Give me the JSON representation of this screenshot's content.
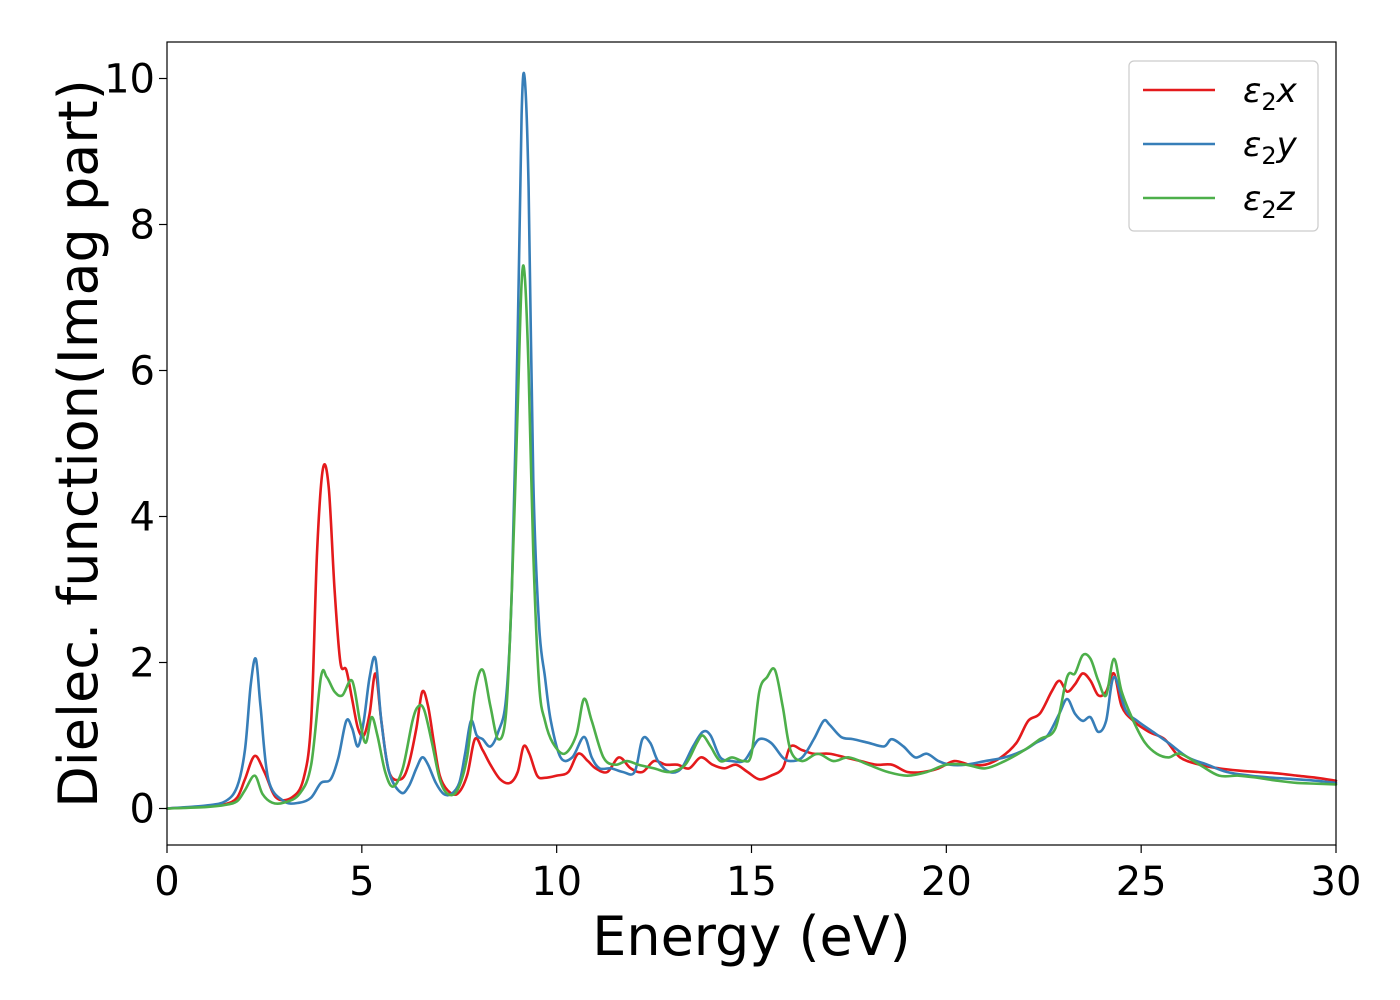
{
  "chart_data": {
    "type": "line",
    "title": "",
    "xlabel": "Energy (eV)",
    "ylabel": "Dielec. function(Imag part)",
    "xlim": [
      0,
      30
    ],
    "ylim": [
      -0.5,
      10.5
    ],
    "xticks": [
      0,
      5,
      10,
      15,
      20,
      25,
      30
    ],
    "xtick_labels": [
      "0",
      "5",
      "10",
      "15",
      "20",
      "25",
      "30"
    ],
    "yticks": [
      0,
      2,
      4,
      6,
      8,
      10
    ],
    "ytick_labels": [
      "0",
      "2",
      "4",
      "6",
      "8",
      "10"
    ],
    "grid": false,
    "legend_position": "top-right",
    "series": [
      {
        "name": "ε2x",
        "legend_base": "ε",
        "legend_sub": "2",
        "legend_var": "x",
        "color": "#e41a1c",
        "x": [
          0,
          1,
          1.5,
          1.8,
          2.0,
          2.25,
          2.5,
          2.8,
          3.2,
          3.5,
          3.7,
          3.85,
          4.0,
          4.15,
          4.3,
          4.45,
          4.6,
          4.75,
          4.9,
          5.05,
          5.2,
          5.35,
          5.5,
          5.7,
          6.0,
          6.2,
          6.4,
          6.55,
          6.7,
          6.85,
          7.0,
          7.2,
          7.45,
          7.7,
          7.9,
          8.1,
          8.3,
          8.55,
          8.8,
          9.0,
          9.15,
          9.3,
          9.5,
          9.7,
          10.0,
          10.3,
          10.55,
          10.8,
          11.0,
          11.3,
          11.6,
          11.9,
          12.2,
          12.5,
          12.8,
          13.1,
          13.4,
          13.7,
          14.0,
          14.3,
          14.6,
          14.9,
          15.2,
          15.5,
          15.8,
          16.0,
          16.3,
          16.6,
          17.0,
          17.4,
          17.8,
          18.2,
          18.6,
          19.0,
          19.4,
          19.8,
          20.2,
          20.6,
          21.0,
          21.4,
          21.8,
          22.1,
          22.4,
          22.7,
          22.9,
          23.1,
          23.3,
          23.5,
          23.7,
          23.9,
          24.1,
          24.3,
          24.5,
          24.8,
          25.2,
          25.6,
          26.0,
          26.5,
          27.0,
          27.5,
          28.0,
          28.5,
          29.0,
          29.5,
          30.0
        ],
        "y": [
          0,
          0.03,
          0.06,
          0.15,
          0.4,
          0.72,
          0.5,
          0.15,
          0.15,
          0.4,
          1.2,
          3.5,
          4.65,
          4.4,
          3.0,
          2.0,
          1.9,
          1.5,
          1.1,
          1.0,
          1.3,
          1.85,
          1.2,
          0.5,
          0.4,
          0.6,
          1.1,
          1.6,
          1.4,
          0.9,
          0.45,
          0.25,
          0.2,
          0.45,
          0.95,
          0.8,
          0.6,
          0.4,
          0.35,
          0.5,
          0.85,
          0.75,
          0.45,
          0.42,
          0.45,
          0.5,
          0.75,
          0.65,
          0.55,
          0.5,
          0.7,
          0.55,
          0.5,
          0.65,
          0.6,
          0.6,
          0.55,
          0.7,
          0.6,
          0.55,
          0.6,
          0.5,
          0.4,
          0.45,
          0.55,
          0.85,
          0.8,
          0.75,
          0.75,
          0.7,
          0.65,
          0.6,
          0.6,
          0.5,
          0.5,
          0.55,
          0.65,
          0.6,
          0.6,
          0.7,
          0.9,
          1.2,
          1.3,
          1.6,
          1.75,
          1.6,
          1.7,
          1.85,
          1.75,
          1.55,
          1.6,
          1.85,
          1.4,
          1.2,
          1.05,
          0.95,
          0.7,
          0.6,
          0.55,
          0.52,
          0.5,
          0.48,
          0.45,
          0.42,
          0.38
        ]
      },
      {
        "name": "ε2y",
        "legend_base": "ε",
        "legend_sub": "2",
        "legend_var": "y",
        "color": "#377eb8",
        "x": [
          0,
          1,
          1.5,
          1.8,
          2.0,
          2.15,
          2.28,
          2.4,
          2.6,
          3.0,
          3.4,
          3.7,
          3.95,
          4.2,
          4.4,
          4.6,
          4.75,
          4.9,
          5.05,
          5.2,
          5.35,
          5.5,
          5.7,
          6.0,
          6.2,
          6.4,
          6.55,
          6.7,
          6.9,
          7.1,
          7.3,
          7.5,
          7.65,
          7.8,
          7.95,
          8.1,
          8.3,
          8.5,
          8.7,
          8.85,
          9.0,
          9.1,
          9.18,
          9.28,
          9.4,
          9.55,
          9.7,
          9.85,
          10.1,
          10.4,
          10.7,
          10.9,
          11.1,
          11.4,
          11.7,
          12.0,
          12.2,
          12.4,
          12.6,
          12.9,
          13.2,
          13.5,
          13.75,
          13.95,
          14.2,
          14.5,
          14.8,
          15.0,
          15.2,
          15.5,
          15.8,
          16.0,
          16.3,
          16.6,
          16.85,
          17.0,
          17.3,
          17.6,
          18.0,
          18.4,
          18.6,
          18.9,
          19.2,
          19.5,
          19.8,
          20.1,
          20.5,
          21.0,
          21.5,
          22.0,
          22.3,
          22.6,
          22.9,
          23.1,
          23.3,
          23.5,
          23.7,
          23.9,
          24.1,
          24.3,
          24.6,
          24.9,
          25.3,
          25.7,
          26.2,
          26.7,
          27.2,
          27.8,
          28.4,
          29.0,
          29.5,
          30.0
        ],
        "y": [
          0,
          0.04,
          0.1,
          0.3,
          0.8,
          1.7,
          2.05,
          1.4,
          0.4,
          0.1,
          0.08,
          0.15,
          0.35,
          0.4,
          0.7,
          1.2,
          1.1,
          0.85,
          1.2,
          1.8,
          2.05,
          1.2,
          0.5,
          0.22,
          0.3,
          0.55,
          0.7,
          0.6,
          0.35,
          0.2,
          0.2,
          0.35,
          0.75,
          1.2,
          1.0,
          0.95,
          0.85,
          1.05,
          1.5,
          3.0,
          6.5,
          9.5,
          10.0,
          8.5,
          4.5,
          2.5,
          1.8,
          1.2,
          0.7,
          0.7,
          0.98,
          0.7,
          0.55,
          0.55,
          0.5,
          0.5,
          0.95,
          0.9,
          0.65,
          0.5,
          0.55,
          0.85,
          1.05,
          1.0,
          0.7,
          0.65,
          0.65,
          0.8,
          0.95,
          0.9,
          0.7,
          0.65,
          0.7,
          0.95,
          1.2,
          1.15,
          0.98,
          0.95,
          0.9,
          0.85,
          0.95,
          0.85,
          0.7,
          0.75,
          0.65,
          0.6,
          0.6,
          0.65,
          0.7,
          0.8,
          0.9,
          1.0,
          1.3,
          1.5,
          1.3,
          1.2,
          1.25,
          1.05,
          1.2,
          1.8,
          1.35,
          1.2,
          1.05,
          0.9,
          0.7,
          0.6,
          0.5,
          0.45,
          0.42,
          0.4,
          0.38,
          0.35
        ]
      },
      {
        "name": "ε2z",
        "legend_base": "ε",
        "legend_sub": "2",
        "legend_var": "z",
        "color": "#4daf4a",
        "x": [
          0,
          1,
          1.5,
          1.8,
          2.0,
          2.25,
          2.45,
          2.7,
          3.0,
          3.4,
          3.7,
          3.95,
          4.1,
          4.3,
          4.5,
          4.75,
          4.95,
          5.1,
          5.25,
          5.4,
          5.6,
          5.8,
          6.05,
          6.3,
          6.45,
          6.6,
          6.8,
          7.0,
          7.2,
          7.45,
          7.7,
          7.9,
          8.1,
          8.3,
          8.5,
          8.7,
          8.85,
          9.0,
          9.1,
          9.18,
          9.28,
          9.4,
          9.55,
          9.7,
          9.9,
          10.2,
          10.5,
          10.7,
          10.9,
          11.2,
          11.5,
          11.8,
          12.1,
          12.5,
          12.9,
          13.3,
          13.6,
          13.75,
          13.95,
          14.2,
          14.5,
          14.8,
          15.0,
          15.2,
          15.4,
          15.6,
          15.8,
          16.0,
          16.3,
          16.7,
          17.1,
          17.5,
          18.0,
          18.5,
          19.0,
          19.5,
          20.0,
          20.5,
          21.0,
          21.5,
          22.0,
          22.4,
          22.8,
          23.1,
          23.3,
          23.5,
          23.7,
          23.9,
          24.1,
          24.3,
          24.5,
          24.8,
          25.1,
          25.4,
          25.7,
          26.0,
          26.5,
          27.0,
          27.5,
          28.0,
          28.5,
          29.0,
          29.5,
          30.0
        ],
        "y": [
          0,
          0.02,
          0.05,
          0.1,
          0.25,
          0.45,
          0.2,
          0.08,
          0.08,
          0.2,
          0.6,
          1.8,
          1.8,
          1.6,
          1.55,
          1.75,
          1.2,
          0.9,
          1.25,
          1.0,
          0.5,
          0.3,
          0.55,
          1.2,
          1.4,
          1.35,
          0.9,
          0.4,
          0.2,
          0.25,
          0.7,
          1.6,
          1.9,
          1.4,
          0.95,
          1.3,
          3.0,
          5.5,
          7.2,
          7.3,
          6.0,
          3.5,
          1.7,
          1.2,
          0.9,
          0.75,
          1.0,
          1.5,
          1.2,
          0.7,
          0.6,
          0.65,
          0.6,
          0.55,
          0.5,
          0.6,
          0.9,
          1.0,
          0.85,
          0.65,
          0.7,
          0.65,
          0.75,
          1.6,
          1.8,
          1.9,
          1.4,
          0.8,
          0.65,
          0.75,
          0.65,
          0.7,
          0.6,
          0.5,
          0.45,
          0.5,
          0.6,
          0.6,
          0.55,
          0.65,
          0.8,
          0.95,
          1.1,
          1.8,
          1.85,
          2.1,
          2.05,
          1.75,
          1.55,
          2.05,
          1.6,
          1.2,
          0.9,
          0.75,
          0.7,
          0.75,
          0.6,
          0.45,
          0.45,
          0.42,
          0.38,
          0.35,
          0.34,
          0.33
        ]
      }
    ]
  }
}
